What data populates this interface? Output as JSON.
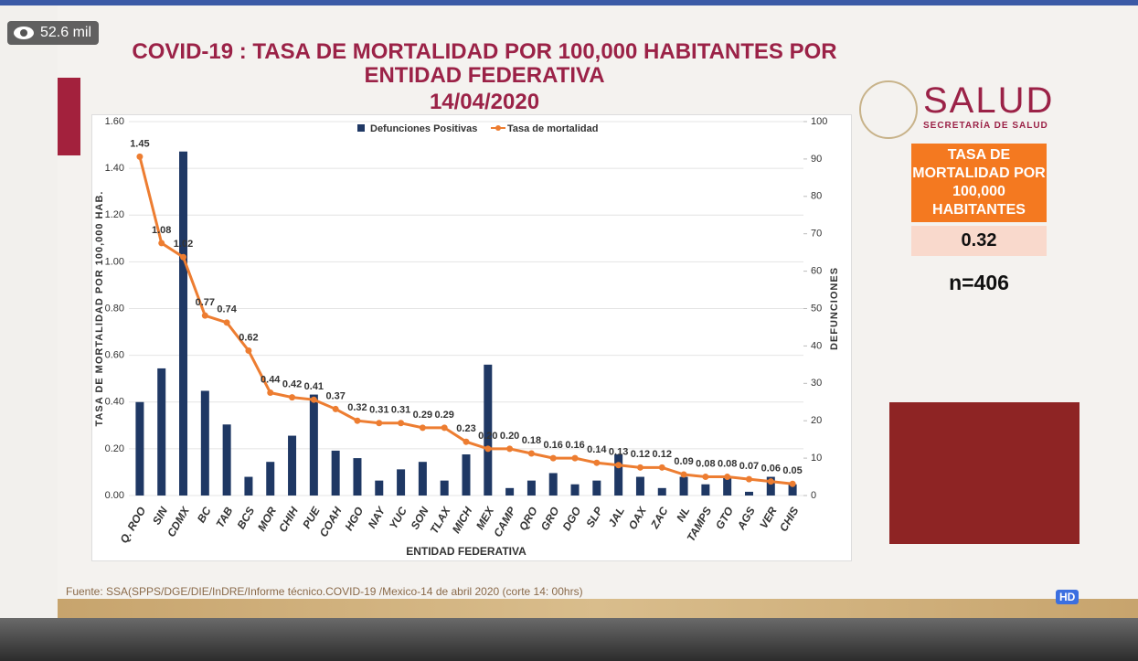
{
  "chart_data": {
    "type": "combo",
    "title": "COVID-19 : TASA DE MORTALIDAD POR 100,000 HABITANTES POR ENTIDAD FEDERATIVA",
    "subtitle": "14/04/2020",
    "xlabel": "ENTIDAD FEDERATIVA",
    "ylabel": "TASA DE MORTALIDAD POR 100,000 HAB.",
    "y2label": "DEFUNCIONES",
    "categories": [
      "Q. ROO",
      "SIN",
      "CDMX",
      "BC",
      "TAB",
      "BCS",
      "MOR",
      "CHIH",
      "PUE",
      "COAH",
      "HGO",
      "NAY",
      "YUC",
      "SON",
      "TLAX",
      "MICH",
      "MEX",
      "CAMP",
      "QRO",
      "GRO",
      "DGO",
      "SLP",
      "JAL",
      "OAX",
      "ZAC",
      "NL",
      "TAMPS",
      "GTO",
      "AGS",
      "VER",
      "CHIS"
    ],
    "series": [
      {
        "name": "Defunciones Positivas",
        "type": "bar",
        "axis": "y2",
        "color": "#1f3864",
        "values": [
          25,
          34,
          92,
          28,
          19,
          5,
          9,
          16,
          27,
          12,
          10,
          4,
          7,
          9,
          4,
          11,
          35,
          2,
          4,
          6,
          3,
          4,
          11,
          5,
          2,
          5,
          3,
          5,
          1,
          5,
          3
        ]
      },
      {
        "name": "Tasa de mortalidad",
        "type": "line",
        "color": "#ed7d31",
        "values": [
          1.45,
          1.08,
          1.02,
          0.77,
          0.74,
          0.62,
          0.44,
          0.42,
          0.41,
          0.37,
          0.32,
          0.31,
          0.31,
          0.29,
          0.29,
          0.23,
          0.2,
          0.2,
          0.18,
          0.16,
          0.16,
          0.14,
          0.13,
          0.12,
          0.12,
          0.09,
          0.08,
          0.08,
          0.07,
          0.06,
          0.05
        ],
        "value_labels": [
          "1.45",
          "1.08",
          "1.02",
          "0.77",
          "0.74",
          "0.62",
          "0.44",
          "0.42",
          "0.41",
          "0.37",
          "0.32",
          "0.31",
          "0.31",
          "0.29",
          "0.29",
          "0.23",
          "0.20",
          "0.20",
          "0.18",
          "0.16",
          "0.16",
          "0.14",
          "0.13",
          "0.12",
          "0.12",
          "0.09",
          "0.08",
          "0.08",
          "0.07",
          "0.06",
          "0.05"
        ]
      }
    ],
    "ylim": [
      0,
      1.6
    ],
    "yticks": [
      {
        "value": 0,
        "label": "0.00"
      },
      {
        "value": 0.2,
        "label": "0.20"
      },
      {
        "value": 0.4,
        "label": "0.40"
      },
      {
        "value": 0.6,
        "label": "0.60"
      },
      {
        "value": 0.8,
        "label": "0.80"
      },
      {
        "value": 1,
        "label": "1.00"
      },
      {
        "value": 1.2,
        "label": "1.20"
      },
      {
        "value": 1.4,
        "label": "1.40"
      },
      {
        "value": 1.6,
        "label": "1.60"
      }
    ],
    "y2lim": [
      0,
      100
    ],
    "y2ticks": [
      0,
      10,
      20,
      30,
      40,
      50,
      60,
      70,
      80,
      90,
      100
    ],
    "grid": true,
    "legend": "top"
  },
  "side_panel": {
    "brand": "SALUD",
    "brand_subtitle": "SECRETARÍA DE SALUD",
    "box_title": "TASA DE MORTALIDAD POR 100,000 HABITANTES",
    "box_value": "0.32",
    "n": "n=406"
  },
  "source": "Fuente: SSA(SPPS/DGE/DIE/InDRE/Informe técnico.COVID-19 /Mexico-14 de abril 2020 (corte 14: 00hrs)",
  "video": {
    "views": "52.6 mil",
    "quality": "HD"
  }
}
